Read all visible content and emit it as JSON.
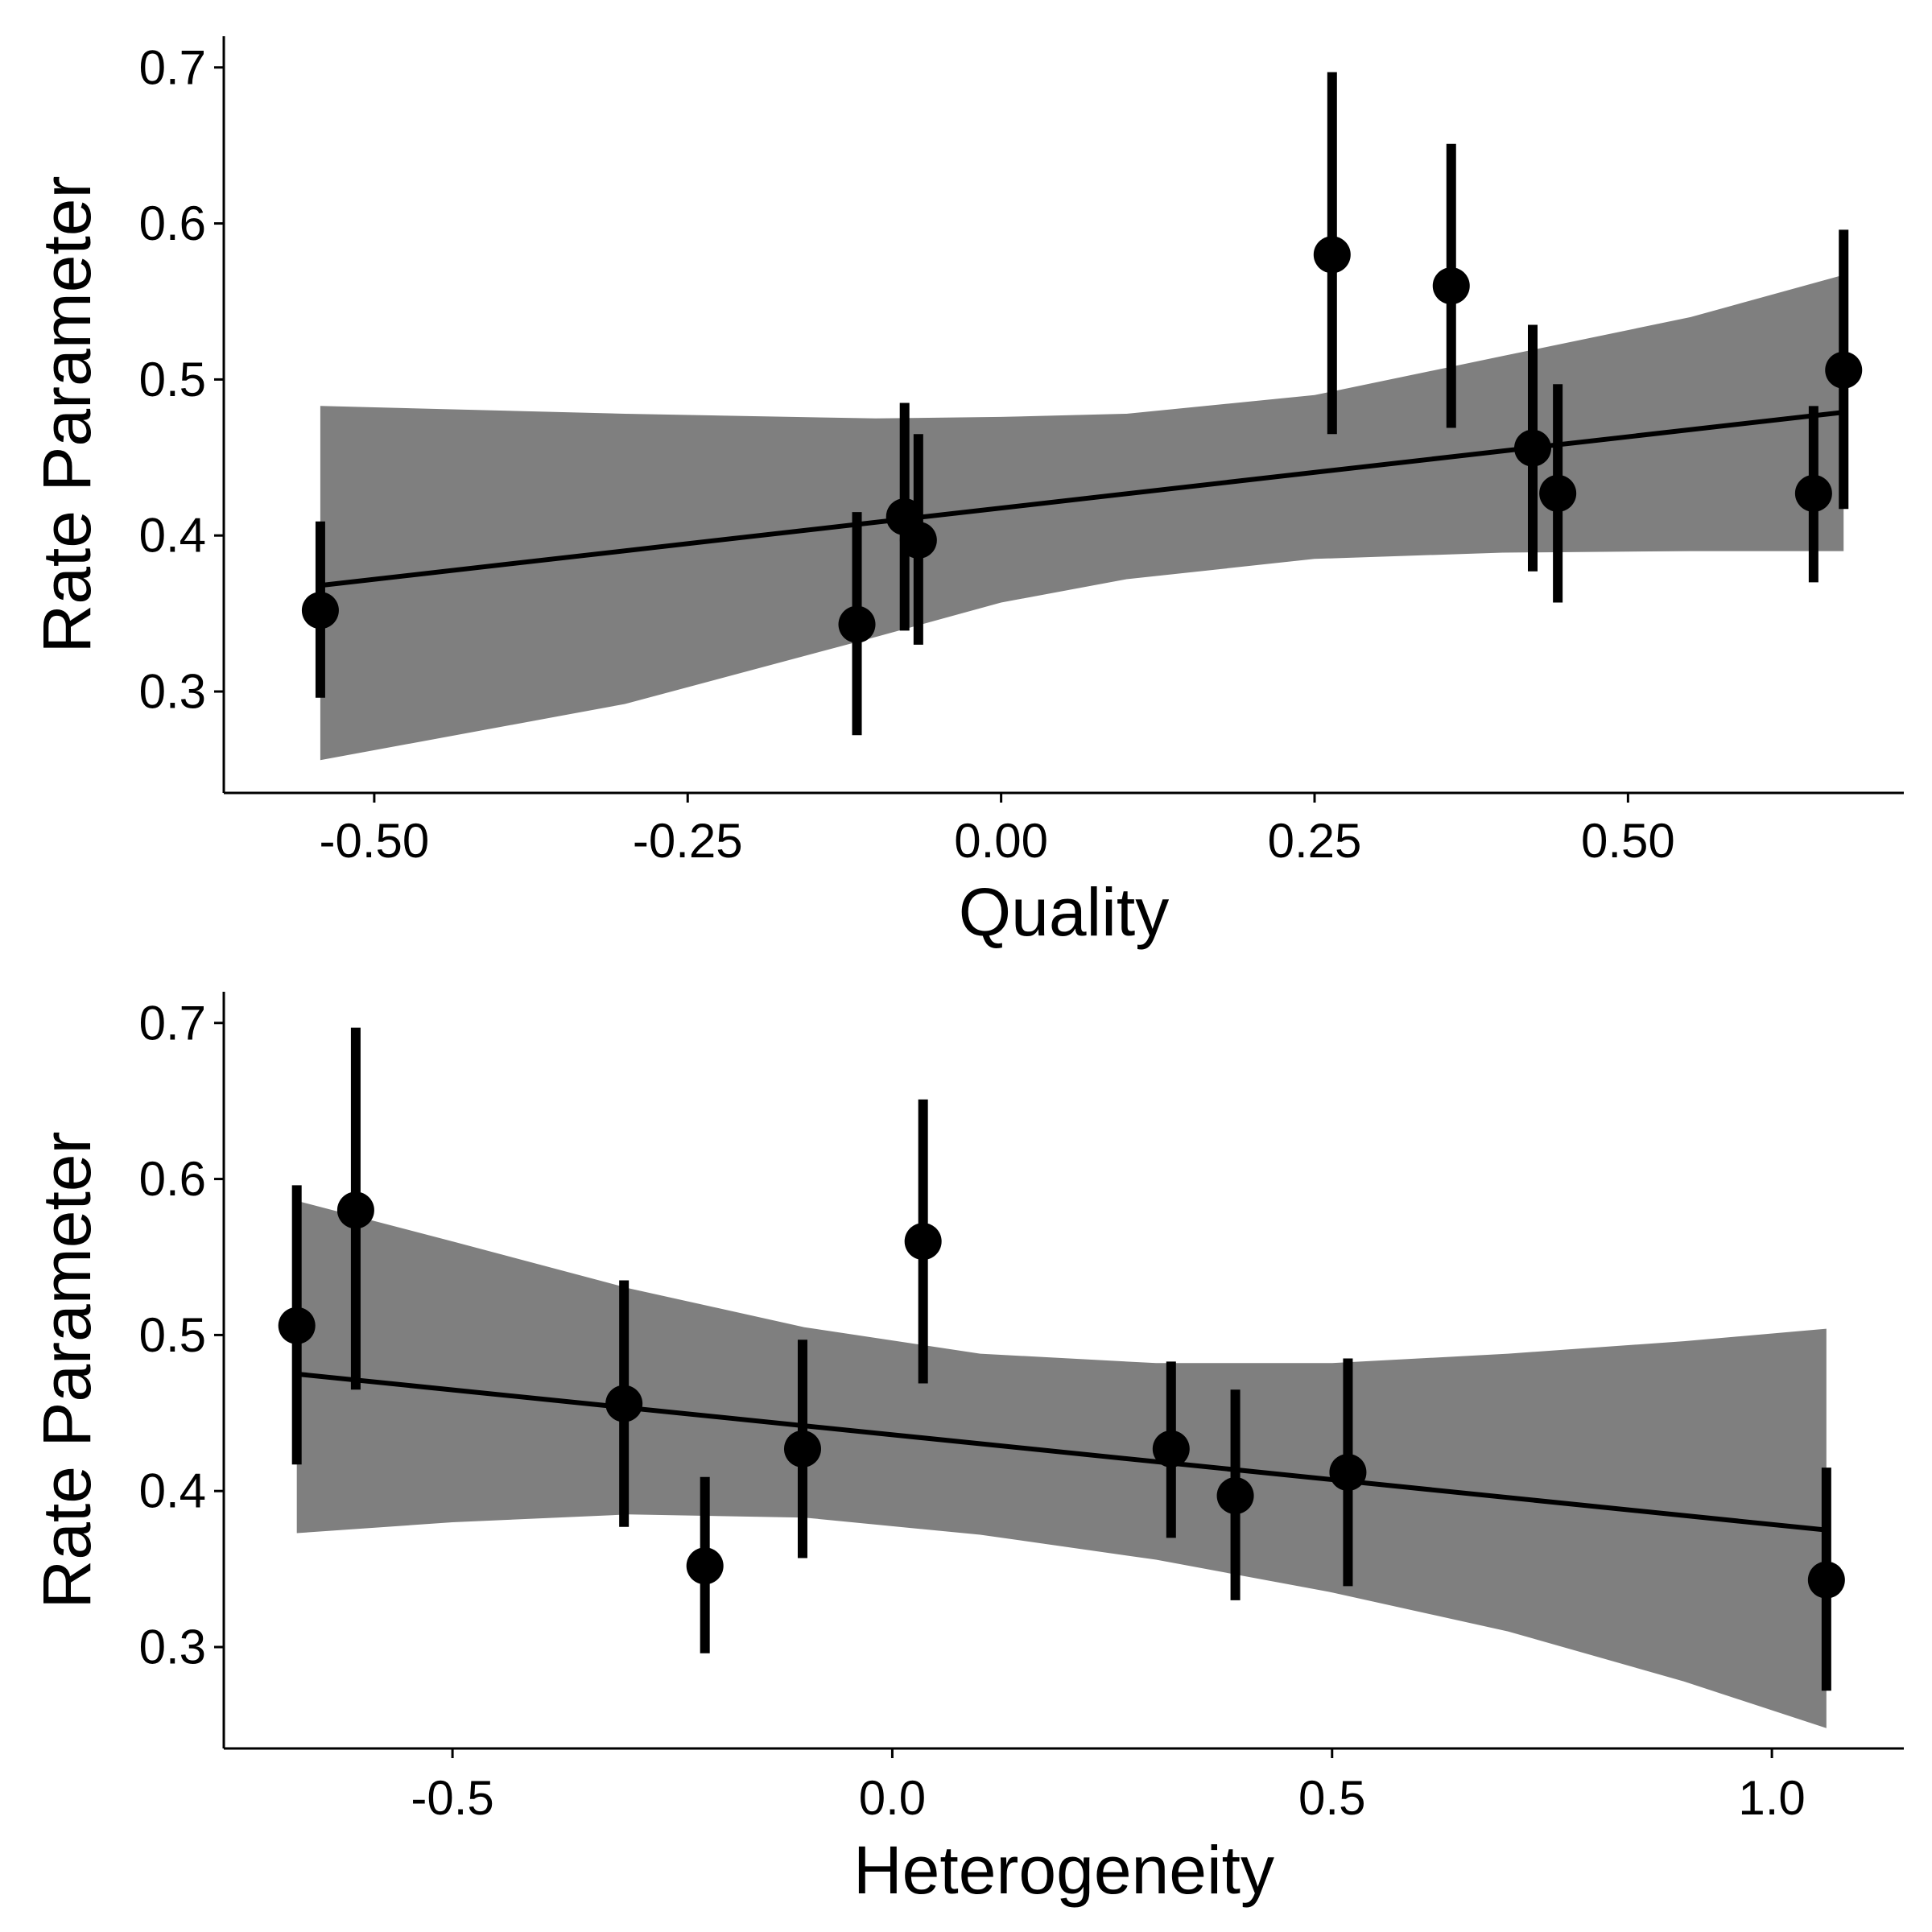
{
  "chart_data": [
    {
      "type": "scatter",
      "xlabel": "Quality",
      "ylabel": "Rate Parameter",
      "xlim": [
        -0.62,
        0.72
      ],
      "ylim": [
        0.235,
        0.72
      ],
      "x_ticks": [
        -0.5,
        -0.25,
        0.0,
        0.25,
        0.5
      ],
      "x_tick_labels": [
        "-0.50",
        "-0.25",
        "0.00",
        "0.25",
        "0.50"
      ],
      "y_ticks": [
        0.3,
        0.4,
        0.5,
        0.6,
        0.7
      ],
      "y_tick_labels": [
        "0.3",
        "0.4",
        "0.5",
        "0.6",
        "0.7"
      ],
      "points": [
        {
          "x": -0.543,
          "y": 0.352,
          "ymin": 0.296,
          "ymax": 0.409
        },
        {
          "x": -0.115,
          "y": 0.343,
          "ymin": 0.272,
          "ymax": 0.415
        },
        {
          "x": -0.077,
          "y": 0.412,
          "ymin": 0.339,
          "ymax": 0.485
        },
        {
          "x": -0.066,
          "y": 0.397,
          "ymin": 0.33,
          "ymax": 0.465
        },
        {
          "x": 0.264,
          "y": 0.58,
          "ymin": 0.465,
          "ymax": 0.697
        },
        {
          "x": 0.359,
          "y": 0.56,
          "ymin": 0.469,
          "ymax": 0.651
        },
        {
          "x": 0.424,
          "y": 0.456,
          "ymin": 0.377,
          "ymax": 0.535
        },
        {
          "x": 0.444,
          "y": 0.427,
          "ymin": 0.357,
          "ymax": 0.497
        },
        {
          "x": 0.648,
          "y": 0.427,
          "ymin": 0.37,
          "ymax": 0.483
        },
        {
          "x": 0.672,
          "y": 0.506,
          "ymin": 0.417,
          "ymax": 0.596
        }
      ],
      "fit_line": [
        {
          "x": -0.543,
          "y": 0.368
        },
        {
          "x": 0.672,
          "y": 0.479
        }
      ],
      "ribbon": [
        {
          "x": -0.543,
          "lower": 0.256,
          "upper": 0.483
        },
        {
          "x": -0.3,
          "lower": 0.292,
          "upper": 0.478
        },
        {
          "x": -0.1,
          "lower": 0.335,
          "upper": 0.475
        },
        {
          "x": 0.0,
          "lower": 0.357,
          "upper": 0.476
        },
        {
          "x": 0.1,
          "lower": 0.372,
          "upper": 0.478
        },
        {
          "x": 0.25,
          "lower": 0.385,
          "upper": 0.49
        },
        {
          "x": 0.4,
          "lower": 0.389,
          "upper": 0.515
        },
        {
          "x": 0.55,
          "lower": 0.39,
          "upper": 0.54
        },
        {
          "x": 0.672,
          "lower": 0.39,
          "upper": 0.567
        }
      ],
      "grid": false
    },
    {
      "type": "scatter",
      "xlabel": "Heterogeneity",
      "ylabel": "Rate Parameter",
      "xlim": [
        -0.76,
        1.15
      ],
      "ylim": [
        0.235,
        0.72
      ],
      "x_ticks": [
        -0.5,
        0.0,
        0.5,
        1.0
      ],
      "x_tick_labels": [
        "-0.5",
        "0.0",
        "0.5",
        "1.0"
      ],
      "y_ticks": [
        0.3,
        0.4,
        0.5,
        0.6,
        0.7
      ],
      "y_tick_labels": [
        "0.3",
        "0.4",
        "0.5",
        "0.6",
        "0.7"
      ],
      "points": [
        {
          "x": -0.677,
          "y": 0.506,
          "ymin": 0.417,
          "ymax": 0.596
        },
        {
          "x": -0.61,
          "y": 0.58,
          "ymin": 0.465,
          "ymax": 0.697
        },
        {
          "x": -0.305,
          "y": 0.456,
          "ymin": 0.377,
          "ymax": 0.535
        },
        {
          "x": -0.213,
          "y": 0.352,
          "ymin": 0.296,
          "ymax": 0.409
        },
        {
          "x": -0.102,
          "y": 0.427,
          "ymin": 0.357,
          "ymax": 0.497
        },
        {
          "x": 0.035,
          "y": 0.56,
          "ymin": 0.469,
          "ymax": 0.651
        },
        {
          "x": 0.317,
          "y": 0.427,
          "ymin": 0.37,
          "ymax": 0.483
        },
        {
          "x": 0.39,
          "y": 0.397,
          "ymin": 0.33,
          "ymax": 0.465
        },
        {
          "x": 0.518,
          "y": 0.412,
          "ymin": 0.339,
          "ymax": 0.485
        },
        {
          "x": 1.062,
          "y": 0.343,
          "ymin": 0.272,
          "ymax": 0.415
        }
      ],
      "fit_line": [
        {
          "x": -0.677,
          "y": 0.475
        },
        {
          "x": 1.062,
          "y": 0.375
        }
      ],
      "ribbon": [
        {
          "x": -0.677,
          "lower": 0.373,
          "upper": 0.586
        },
        {
          "x": -0.5,
          "lower": 0.38,
          "upper": 0.56
        },
        {
          "x": -0.3,
          "lower": 0.385,
          "upper": 0.53
        },
        {
          "x": -0.1,
          "lower": 0.383,
          "upper": 0.505
        },
        {
          "x": 0.1,
          "lower": 0.372,
          "upper": 0.488
        },
        {
          "x": 0.3,
          "lower": 0.356,
          "upper": 0.482
        },
        {
          "x": 0.5,
          "lower": 0.335,
          "upper": 0.482
        },
        {
          "x": 0.7,
          "lower": 0.31,
          "upper": 0.488
        },
        {
          "x": 0.9,
          "lower": 0.278,
          "upper": 0.496
        },
        {
          "x": 1.062,
          "lower": 0.248,
          "upper": 0.504
        }
      ],
      "grid": false
    }
  ],
  "colors": {
    "ribbon": "#7f7f7f",
    "marks": "#000000",
    "background": "#ffffff"
  }
}
